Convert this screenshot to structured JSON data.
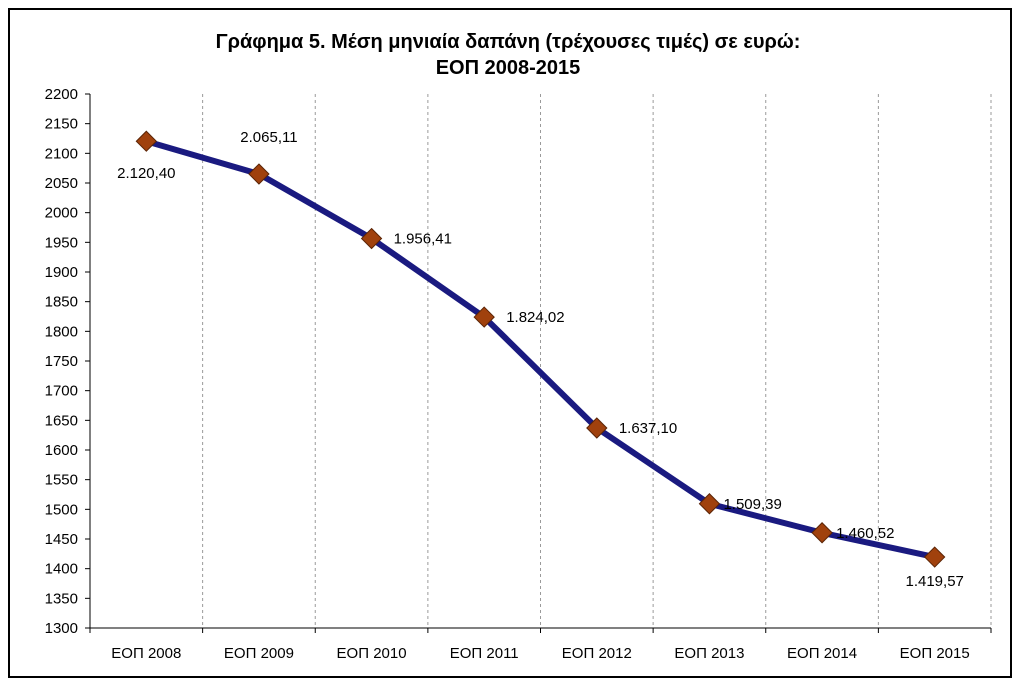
{
  "chart_data": {
    "type": "line",
    "title_lines": [
      "Γράφημα 5. Μέση μηνιαία δαπάνη (τρέχουσες τιμές) σε ευρώ:",
      "ΕΟΠ  2008-2015"
    ],
    "xlabel": "",
    "ylabel": "",
    "categories": [
      "ΕΟΠ 2008",
      "ΕΟΠ 2009",
      "ΕΟΠ 2010",
      "ΕΟΠ 2011",
      "ΕΟΠ 2012",
      "ΕΟΠ 2013",
      "ΕΟΠ 2014",
      "ΕΟΠ 2015"
    ],
    "series": [
      {
        "values": [
          2120.4,
          2065.11,
          1956.41,
          1824.02,
          1637.1,
          1509.39,
          1460.52,
          1419.57
        ],
        "data_labels": [
          "2.120,40",
          "2.065,11",
          "1.956,41",
          "1.824,02",
          "1.637,10",
          "1.509,39",
          "1.460,52",
          "1.419,57"
        ],
        "line_color": "#1a1a80",
        "marker_color": "#a0410d",
        "marker": "diamond"
      }
    ],
    "ylim": [
      1300,
      2200
    ],
    "ytick_step": 50,
    "yticks": [
      "1300",
      "1350",
      "1400",
      "1450",
      "1500",
      "1550",
      "1600",
      "1650",
      "1700",
      "1750",
      "1800",
      "1850",
      "1900",
      "1950",
      "2000",
      "2050",
      "2100",
      "2150",
      "2200"
    ],
    "grid": "vertical-dashed",
    "legend": "none"
  }
}
